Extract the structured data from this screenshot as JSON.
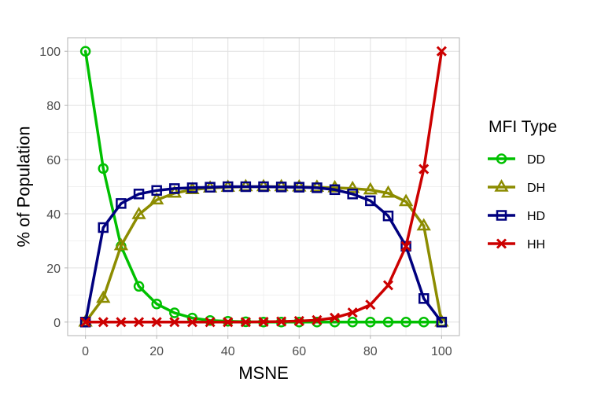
{
  "chart_data": {
    "type": "line",
    "title": "",
    "xlabel": "MSNE",
    "ylabel": "% of Population",
    "xlim": [
      -5,
      105
    ],
    "ylim": [
      -5,
      105
    ],
    "x_ticks": [
      0,
      20,
      40,
      60,
      80,
      100
    ],
    "y_ticks": [
      0,
      20,
      40,
      60,
      80,
      100
    ],
    "grid": true,
    "legend_title": "MFI Type",
    "legend_position": "right",
    "x": [
      0,
      5,
      10,
      15,
      20,
      25,
      30,
      35,
      40,
      45,
      50,
      55,
      60,
      65,
      70,
      75,
      80,
      85,
      90,
      95,
      100
    ],
    "series": [
      {
        "name": "DD",
        "color": "#00c000",
        "marker": "circle",
        "values": [
          100,
          56.7,
          28,
          13.2,
          6.7,
          3.4,
          1.5,
          0.6,
          0.3,
          0.1,
          0,
          0,
          0,
          0,
          0,
          0,
          0,
          0,
          0,
          0,
          0
        ]
      },
      {
        "name": "DH",
        "color": "#8c8c00",
        "marker": "triangle",
        "values": [
          0,
          8.8,
          28.2,
          39.7,
          45.1,
          47.6,
          48.9,
          49.5,
          49.8,
          50,
          50,
          50,
          49.9,
          49.8,
          49.6,
          49.3,
          48.8,
          47.6,
          44.5,
          35.5,
          0
        ]
      },
      {
        "name": "HD",
        "color": "#00007f",
        "marker": "square",
        "values": [
          0,
          34.9,
          43.8,
          47.3,
          48.6,
          49.3,
          49.6,
          49.8,
          50,
          50,
          50,
          49.9,
          49.8,
          49.6,
          48.9,
          47.3,
          44.8,
          39.2,
          28,
          8.7,
          0
        ]
      },
      {
        "name": "HH",
        "color": "#cc0000",
        "marker": "x",
        "values": [
          0,
          0,
          0,
          0,
          0,
          0,
          0,
          0,
          0,
          0,
          0.1,
          0.2,
          0.4,
          0.7,
          1.6,
          3.5,
          6.4,
          13.6,
          28,
          56.5,
          100
        ]
      }
    ]
  }
}
